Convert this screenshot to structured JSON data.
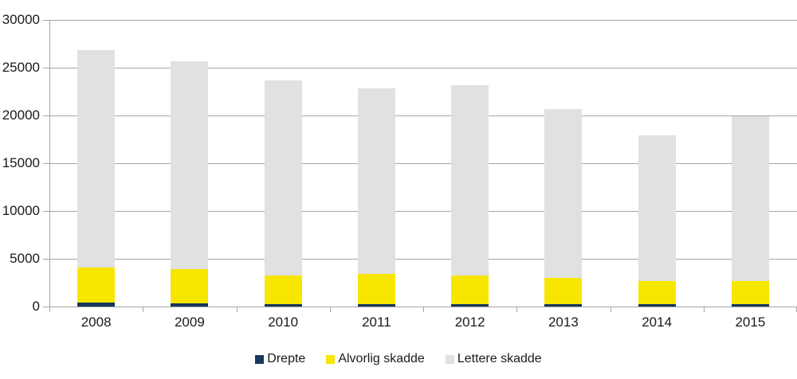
{
  "chart_data": {
    "type": "bar",
    "stacked": true,
    "title": "",
    "categories": [
      "2008",
      "2009",
      "2010",
      "2011",
      "2012",
      "2013",
      "2014",
      "2015"
    ],
    "series": [
      {
        "name": "Drepte",
        "color": "#17375c",
        "values": [
          400,
          360,
          280,
          290,
          270,
          250,
          230,
          240
        ]
      },
      {
        "name": "Alvorlig skadde",
        "color": "#f7e600",
        "values": [
          3650,
          3530,
          2950,
          3130,
          2950,
          2780,
          2410,
          2450
        ]
      },
      {
        "name": "Lettere skadde",
        "color": "#e1e1e1",
        "values": [
          22750,
          21800,
          20400,
          19400,
          19950,
          17600,
          15250,
          17200
        ]
      }
    ],
    "totals": [
      26800,
      25690,
      23630,
      22820,
      23170,
      20630,
      17890,
      19890
    ],
    "xlabel": "",
    "ylabel": "",
    "ylim": [
      0,
      30000
    ],
    "ytick_step": 5000,
    "ytick_labels": [
      "0",
      "5000",
      "10000",
      "15000",
      "20000",
      "25000",
      "30000"
    ],
    "grid": true,
    "legend_position": "bottom",
    "colors": {
      "background": "#ffffff",
      "gridline": "#a6a6a6",
      "text": "#1a1a1a"
    }
  }
}
